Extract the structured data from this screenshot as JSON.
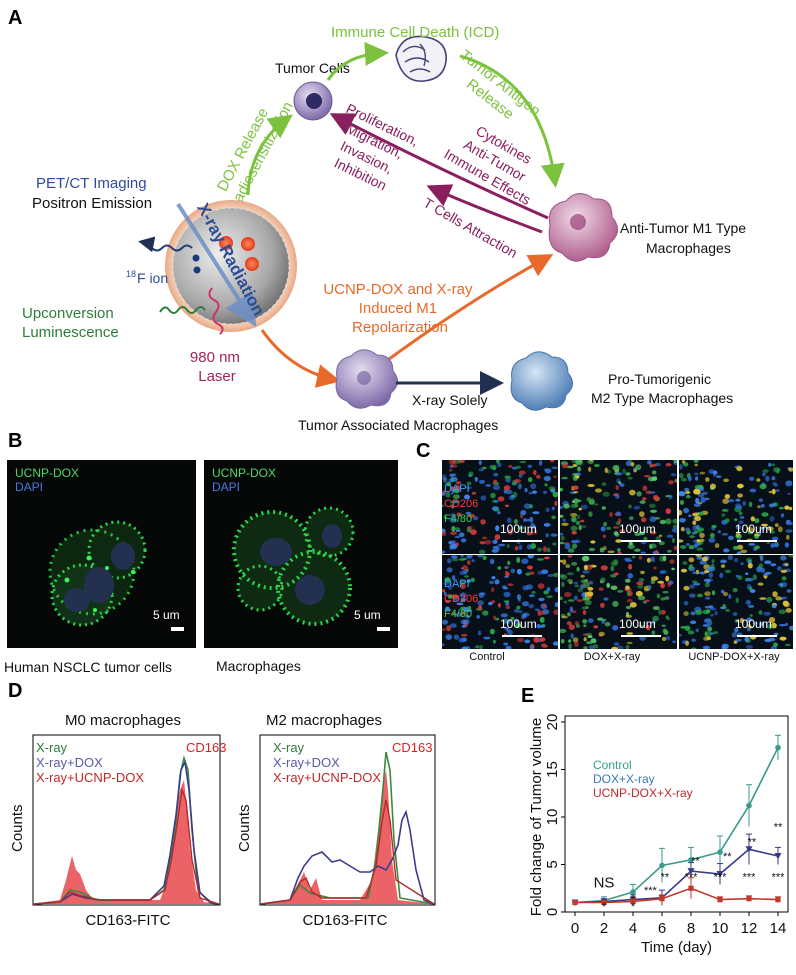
{
  "panelA": {
    "letter": "A",
    "tumor_cells": "Tumor Cells",
    "icd": "Immune Cell Death (ICD)",
    "tumor_antigen": [
      "Tumor Antigen",
      "Release"
    ],
    "dox_release": [
      "DOX Release",
      "Radiosensitization"
    ],
    "proliferation": [
      "Proliferation,",
      "Migration,",
      "Invasion,",
      "Inhibition"
    ],
    "cytokines": [
      "Cytokines",
      "Anti-Tumor",
      "Immune Effects"
    ],
    "t_cells": "T Cells Attraction",
    "m1": [
      "Anti-Tumor M1 Type",
      "Macrophages"
    ],
    "pet": [
      "PET/CT Imaging",
      "Positron Emission"
    ],
    "xray_radiation": "X-ray Radiation",
    "f_ion_sup": "18",
    "f_ion": "F ion",
    "upconversion": [
      "Upconversion",
      "Luminescence"
    ],
    "laser": [
      "980 nm",
      "Laser"
    ],
    "repolarization": [
      "UCNP-DOX and X-ray",
      "Induced M1",
      "Repolarization"
    ],
    "x_ray_solely": "X-ray Solely",
    "tam": "Tumor Associated Macrophages",
    "m2": [
      "Pro-Tumorigenic",
      "M2 Type Macrophages"
    ]
  },
  "panelB": {
    "letter": "B",
    "legend_ucnp": "UCNP-DOX",
    "legend_dapi": "DAPI",
    "scale": "5 um",
    "caption_left": "Human NSCLC tumor cells",
    "caption_right": "Macrophages"
  },
  "panelC": {
    "letter": "C",
    "stain": [
      "DAPI",
      "CD206",
      "F4/80"
    ],
    "scale": "100um",
    "columns": [
      "Control",
      "DOX+X-ray",
      "UCNP-DOX+X-ray"
    ]
  },
  "panelD": {
    "letter": "D",
    "title_left": "M0 macrophages",
    "title_right": "M2 macrophages",
    "legend": [
      "X-ray",
      "X-ray+DOX",
      "X-ray+UCNP-DOX"
    ],
    "marker": "CD163",
    "ylabel": "Counts",
    "xlabel": "CD163-FITC"
  },
  "panelE": {
    "letter": "E",
    "colors": {
      "control": "#3a9a8c",
      "dox": "#3a3a8a",
      "ucnp": "#c0392b"
    },
    "significance": [
      {
        "x": 2,
        "y": 2.6,
        "text": "NS",
        "size": 15
      },
      {
        "x": 2,
        "y": 0.2,
        "text": "*",
        "size": 11
      },
      {
        "x": 4,
        "y": 0.2,
        "text": "*",
        "size": 11
      },
      {
        "x": 4,
        "y": 1.0,
        "text": "*",
        "size": 11
      },
      {
        "x": 5.2,
        "y": 1.9,
        "text": "***",
        "size": 11
      },
      {
        "x": 6.2,
        "y": 3.3,
        "text": "**",
        "size": 11
      },
      {
        "x": 8.3,
        "y": 5.0,
        "text": "**",
        "size": 11
      },
      {
        "x": 8.0,
        "y": 3.3,
        "text": "***",
        "size": 11
      },
      {
        "x": 10.0,
        "y": 3.3,
        "text": "***",
        "size": 11
      },
      {
        "x": 10.5,
        "y": 5.5,
        "text": "**",
        "size": 11
      },
      {
        "x": 12.2,
        "y": 7.0,
        "text": "**",
        "size": 11
      },
      {
        "x": 12.0,
        "y": 3.3,
        "text": "***",
        "size": 11
      },
      {
        "x": 14.0,
        "y": 8.6,
        "text": "**",
        "size": 11
      },
      {
        "x": 14.0,
        "y": 3.3,
        "text": "***",
        "size": 11
      }
    ]
  },
  "chart_data": {
    "type": "line",
    "xlabel": "Time (day)",
    "ylabel": "Fold change of Tumor volume",
    "x": [
      0,
      2,
      4,
      6,
      8,
      10,
      12,
      14
    ],
    "xlim": [
      0,
      14
    ],
    "ylim": [
      0,
      20
    ],
    "xticks": [
      0,
      2,
      4,
      6,
      8,
      10,
      12,
      14
    ],
    "yticks": [
      0,
      5,
      10,
      15,
      20
    ],
    "legend_position": "top-left",
    "series": [
      {
        "name": "Control",
        "values": [
          1,
          1.2,
          2.1,
          4.9,
          5.5,
          6.3,
          11.2,
          17.3
        ],
        "errors": [
          0,
          0.4,
          0.8,
          1.8,
          1.3,
          1.7,
          2.2,
          1.3
        ]
      },
      {
        "name": "DOX+X-ray",
        "values": [
          1,
          1.1,
          1.3,
          1.5,
          4.3,
          4.0,
          6.6,
          5.9
        ],
        "errors": [
          0,
          0.3,
          0.5,
          0.8,
          0.9,
          1.1,
          1.6,
          0.9
        ]
      },
      {
        "name": "UCNP-DOX+X-ray",
        "values": [
          1,
          1.0,
          1.1,
          1.4,
          2.5,
          1.3,
          1.4,
          1.3
        ],
        "errors": [
          0,
          0.2,
          0.3,
          0.4,
          1.1,
          0.3,
          0.3,
          0.3
        ]
      }
    ]
  }
}
